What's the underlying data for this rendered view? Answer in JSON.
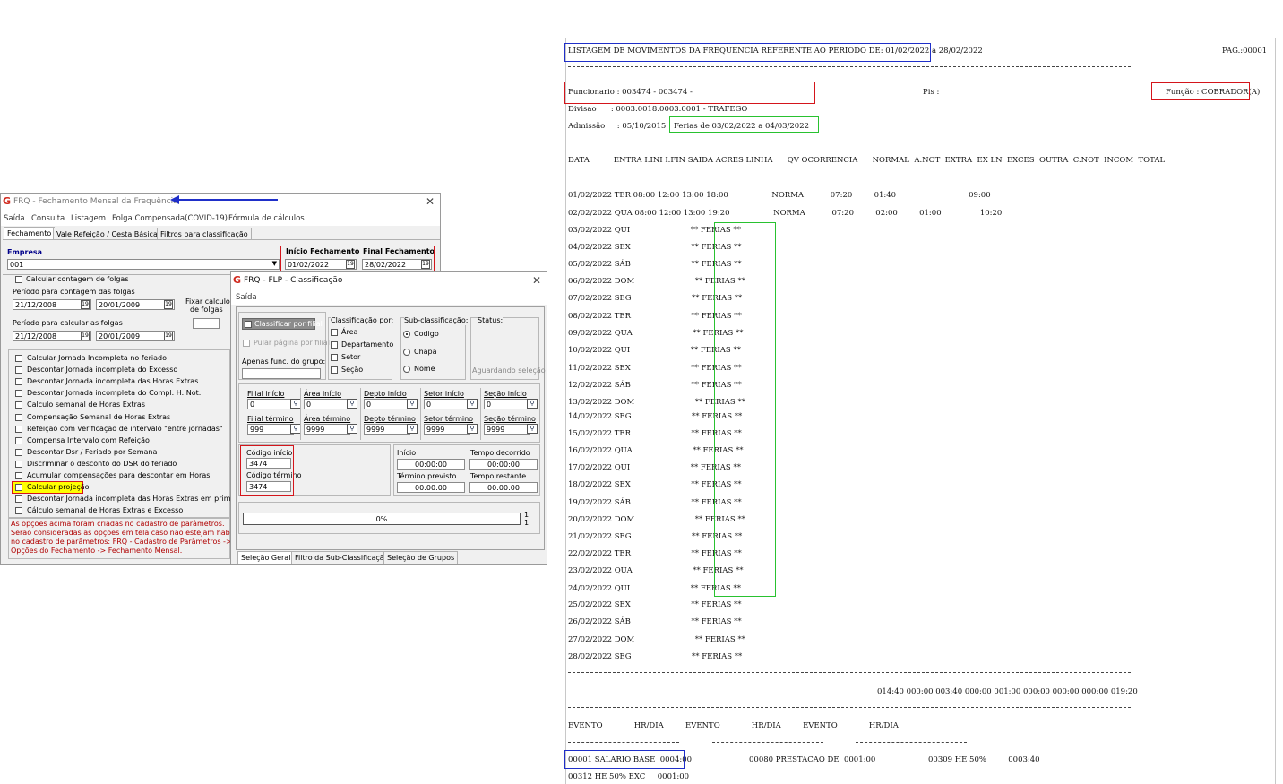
{
  "main_window": {
    "title": "FRQ - Fechamento Mensal da Frequência",
    "menu": [
      "Saída",
      "Consulta",
      "Listagem",
      "Folga Compensada(COVID-19)",
      "Fórmula de cálculos"
    ],
    "tabs": [
      "Fechamento",
      "Vale Refeição / Cesta Básica",
      "Filtros para classificação"
    ],
    "empresa_label": "Empresa",
    "empresa_value": "001",
    "inicio_label": "Início Fechamento",
    "final_label": "Final Fechamento",
    "inicio_value": "01/02/2022",
    "final_value": "28/02/2022",
    "calc_folgas_label": "Calcular contagem de folgas",
    "periodo_contagem_label": "Período para contagem das folgas",
    "periodo_contagem_de": "21/12/2008",
    "periodo_contagem_ate": "20/01/2009",
    "fixar_label_1": "Fixar calculo",
    "fixar_label_2": "de folgas",
    "periodo_calcular_label": "Período para calcular as folgas",
    "periodo_calcular_de": "21/12/2008",
    "periodo_calcular_ate": "20/01/2009",
    "options": [
      "Calcular Jornada Incompleta no feriado",
      "Descontar Jornada incompleta do Excesso",
      "Descontar Jornada incompleta das Horas Extras",
      "Descontar Jornada incompleta do Compl. H. Not.",
      "Calculo semanal de Horas Extras",
      "Compensação Semanal de Horas Extras",
      "Refeição com verificação de intervalo \"entre jornadas\"",
      "Compensa Intervalo com Refeição",
      "Descontar Dsr / Feriado por Semana",
      "Discriminar o desconto do DSR do feriado",
      "Acumular compensações para descontar em Horas",
      "Calcular projeção",
      "Descontar Jornada incompleta das Horas Extras em primeiro",
      "Cálculo semanal de Horas Extras e Excesso"
    ],
    "notice": [
      "As opções acima foram criadas no cadastro de parâmetros.",
      "Serão consideradas as opções em tela caso não estejam habilitados",
      "no cadastro de parâmetros: FRQ - Cadastro de Parâmetros ->",
      "Opções do Fechamento -> Fechamento Mensal."
    ]
  },
  "class_window": {
    "title": "FRQ - FLP - Classificação",
    "menu": "Saída",
    "classificar_filial": "Classificar por filial",
    "pular_pagina": "Pular página por filial",
    "apenas_grupo": "Apenas func. do grupo:",
    "classificacao_por": "Classificação por:",
    "class_items": [
      "Área",
      "Departamento",
      "Setor",
      "Seção"
    ],
    "sub_class": "Sub-classificação:",
    "sub_items": [
      "Codigo",
      "Chapa",
      "Nome"
    ],
    "status_label": "Status:",
    "status_value": "Aguardando seleção",
    "filters": [
      {
        "start_label": "Filial início",
        "start": "0",
        "end_label": "Filial término",
        "end": "999"
      },
      {
        "start_label": "Área início",
        "start": "0",
        "end_label": "Área término",
        "end": "9999"
      },
      {
        "start_label": "Depto início",
        "start": "0",
        "end_label": "Depto término",
        "end": "9999"
      },
      {
        "start_label": "Setor início",
        "start": "0",
        "end_label": "Setor término",
        "end": "9999"
      },
      {
        "start_label": "Seção início",
        "start": "0",
        "end_label": "Seção término",
        "end": "9999"
      }
    ],
    "codigo_inicio_label": "Código início",
    "codigo_inicio": "3474",
    "codigo_termino_label": "Código término",
    "codigo_termino": "3474",
    "inicio_label": "Início",
    "inicio_value": "00:00:00",
    "decorrido_label": "Tempo decorrido",
    "decorrido_value": "00:00:00",
    "previsto_label": "Término previsto",
    "previsto_value": "00:00:00",
    "restante_label": "Tempo restante",
    "restante_value": "00:00:00",
    "progress": "0%",
    "progress_side_1": "1",
    "progress_side_2": "1",
    "bottom_tabs": [
      "Seleção Geral",
      "Filtro da Sub-Classificação",
      "Seleção de Grupos"
    ]
  },
  "report": {
    "title": "LISTAGEM DE MOVIMENTOS DA FREQUENCIA REFERENTE AO PERIODO DE: 01/02/2022 a 28/02/2022",
    "page": "PAG.:00001",
    "funcionario": "Funcionario : 003474 - 003474 -",
    "pis": "Pis :",
    "funcao": "Função : COBRADOR(A)",
    "divisao": "Divisao      : 0003.0018.0003.0001 - TRAFEGO",
    "admissao": "Admissão     : 05/10/2015",
    "ferias": "Ferias de 03/02/2022 a 04/03/2022",
    "header": "DATA          ENTRA I.INI I.FIN SAIDA ACRES LINHA      QV OCORRENCIA      NORMAL  A.NOT  EXTRA  EX LN  EXCES  OUTRA  C.NOT  INCOM  TOTAL",
    "rows": [
      "01/02/2022 TER 08:00 12:00 13:00 18:00                  NORMA           07:20         01:40                              09:00",
      "02/02/2022 QUA 08:00 12:00 13:00 19:20                  NORMA           07:20         02:00         01:00                10:20",
      "03/02/2022 QUI                         ** FERIAS **",
      "04/02/2022 SEX                         ** FERIAS **",
      "05/02/2022 SÁB                         ** FERIAS **",
      "06/02/2022 DOM                         ** FERIAS **",
      "07/02/2022 SEG                         ** FERIAS **",
      "08/02/2022 TER                         ** FERIAS **",
      "09/02/2022 QUA                         ** FERIAS **",
      "10/02/2022 QUI                         ** FERIAS **",
      "11/02/2022 SEX                         ** FERIAS **",
      "12/02/2022 SÁB                         ** FERIAS **",
      "13/02/2022 DOM                         ** FERIAS **",
      "14/02/2022 SEG                         ** FERIAS **",
      "15/02/2022 TER                         ** FERIAS **",
      "16/02/2022 QUA                         ** FERIAS **",
      "17/02/2022 QUI                         ** FERIAS **",
      "18/02/2022 SEX                         ** FERIAS **",
      "19/02/2022 SÁB                         ** FERIAS **",
      "20/02/2022 DOM                         ** FERIAS **",
      "21/02/2022 SEG                         ** FERIAS **",
      "22/02/2022 TER                         ** FERIAS **",
      "23/02/2022 QUA                         ** FERIAS **",
      "24/02/2022 QUI                         ** FERIAS **",
      "25/02/2022 SEX                         ** FERIAS **",
      "26/02/2022 SÁB                         ** FERIAS **",
      "27/02/2022 DOM                         ** FERIAS **",
      "28/02/2022 SEG                         ** FERIAS **"
    ],
    "totals": "014:40 000:00 003:40 000:00 001:00 000:00 000:00 000:00 019:20",
    "evento_header": "EVENTO             HR/DIA         EVENTO             HR/DIA         EVENTO             HR/DIA",
    "evento_row1_a": "00001 SALARIO BASE  0004:00",
    "evento_row1_b": "00080 PRESTACAO DE  0001:00",
    "evento_row1_c": "00309 HE 50%         0003:40",
    "evento_row2": "00312 HE 50% EXC     0001:00"
  }
}
